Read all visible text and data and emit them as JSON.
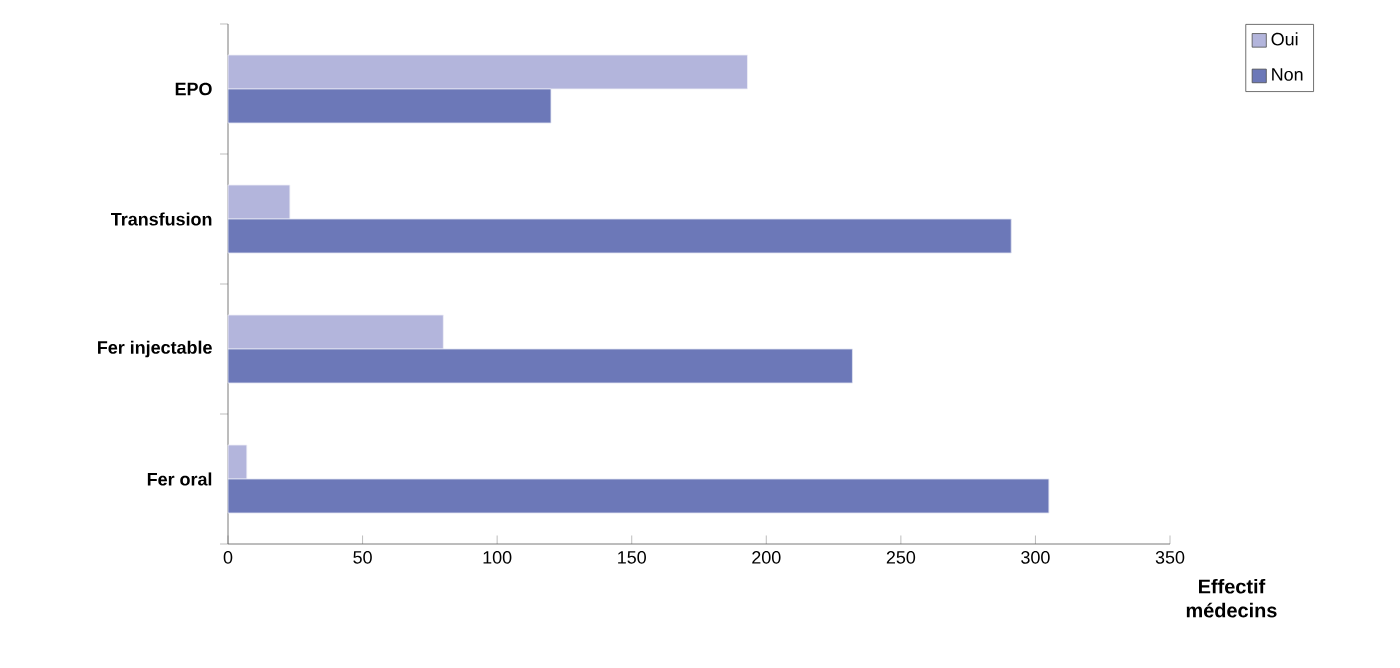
{
  "chart_data": {
    "type": "bar",
    "orientation": "horizontal",
    "xlabel": "Effectif médecins",
    "categories": [
      "EPO",
      "Transfusion",
      "Fer injectable",
      "Fer oral"
    ],
    "series": [
      {
        "name": "Oui",
        "color": "#b3b5dc",
        "values": [
          193,
          23,
          80,
          7
        ]
      },
      {
        "name": "Non",
        "color": "#6c78b8",
        "values": [
          120,
          291,
          232,
          305
        ]
      }
    ],
    "xlim": [
      0,
      350
    ],
    "xticks": [
      0,
      50,
      100,
      150,
      200,
      250,
      300,
      350
    ],
    "legend": "top right",
    "grid": false
  }
}
